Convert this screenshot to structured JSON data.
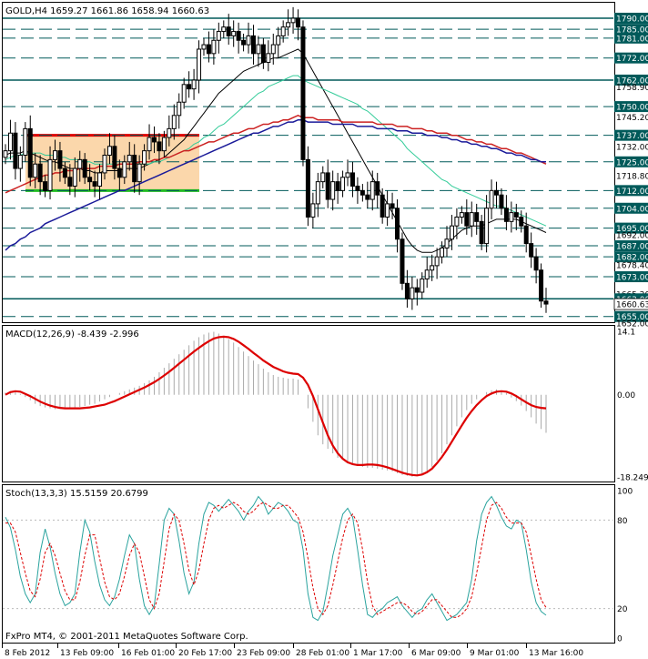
{
  "window": {
    "price_header": "GOLD,H4  1659.27 1661.86 1658.94 1660.63",
    "macd_header": "MACD(12,26,9) -8.439 -2.996",
    "stoch_header": "Stoch(13,3,3) 15.5159 20.6799",
    "copyright": "FxPro MT4, © 2001-2011 MetaQuotes Software Corp."
  },
  "colors": {
    "candle": "#000000",
    "sma_fast": "#000000",
    "sma_green": "#33cc99",
    "sma_red": "#cc2222",
    "sma_blue": "#1a1a99",
    "level_line": "#005a5a",
    "rect_fill": "#fbd7ab",
    "macd_signal": "#dd0000",
    "macd_hist": "#aaaaaa",
    "stoch_main": "#2aa39e",
    "stoch_signal": "#dd0000"
  },
  "chart_data": [
    {
      "type": "candlestick",
      "symbol": "GOLD",
      "timeframe": "H4",
      "ylim": [
        1652,
        1797
      ],
      "x_ticks": [
        "8 Feb 2012",
        "13 Feb 09:00",
        "16 Feb 01:00",
        "20 Feb 17:00",
        "23 Feb 09:00",
        "28 Feb 01:00",
        "1 Mar 17:00",
        "6 Mar 09:00",
        "9 Mar 01:00",
        "13 Mar 16:00"
      ],
      "level_labels": [
        "1790.00",
        "1785.00",
        "1781.00",
        "1772.00",
        "1762.00",
        "1758.90",
        "1750.00",
        "1745.20",
        "1737.00",
        "1732.00",
        "1725.00",
        "1718.80",
        "1712.00",
        "1704.00",
        "1695.00",
        "1692.00",
        "1687.00",
        "1682.00",
        "1678.40",
        "1673.00",
        "1665.20",
        "1663.00",
        "1660.63",
        "1655.00",
        "1652.00"
      ],
      "solid_levels": [
        1790,
        1762,
        1663
      ],
      "dashed_levels": [
        1785,
        1781,
        1772,
        1750,
        1737,
        1725,
        1712,
        1704,
        1695,
        1687,
        1682,
        1673,
        1655
      ],
      "current_price": 1660.63,
      "support_box": {
        "top": 1737,
        "bottom": 1712
      },
      "closes": [
        1730,
        1738,
        1722,
        1728,
        1740,
        1718,
        1724,
        1716,
        1712,
        1726,
        1730,
        1722,
        1718,
        1714,
        1722,
        1726,
        1718,
        1716,
        1714,
        1720,
        1728,
        1732,
        1722,
        1718,
        1725,
        1728,
        1716,
        1724,
        1730,
        1736,
        1734,
        1730,
        1736,
        1740,
        1746,
        1752,
        1760,
        1758,
        1762,
        1776,
        1778,
        1774,
        1780,
        1784,
        1786,
        1782,
        1784,
        1780,
        1778,
        1782,
        1774,
        1778,
        1770,
        1774,
        1778,
        1782,
        1786,
        1788,
        1790,
        1786,
        1726,
        1700,
        1706,
        1716,
        1720,
        1708,
        1716,
        1712,
        1718,
        1720,
        1714,
        1712,
        1710,
        1708,
        1716,
        1710,
        1700,
        1706,
        1704,
        1690,
        1670,
        1663,
        1668,
        1666,
        1672,
        1676,
        1678,
        1682,
        1686,
        1690,
        1696,
        1700,
        1702,
        1696,
        1702,
        1698,
        1688,
        1704,
        1712,
        1710,
        1704,
        1698,
        1702,
        1700,
        1696,
        1688,
        1682,
        1676,
        1662,
        1660.63
      ],
      "series": [
        {
          "name": "MA fast",
          "values": [
            1728,
            1729,
            1729,
            1729,
            1730,
            1729,
            1728,
            1727,
            1726,
            1725,
            1725,
            1724,
            1723,
            1722,
            1722,
            1722,
            1721,
            1721,
            1720,
            1720,
            1721,
            1721,
            1721,
            1721,
            1722,
            1722,
            1722,
            1722,
            1723,
            1724,
            1725,
            1726,
            1727,
            1729,
            1731,
            1733,
            1735,
            1738,
            1741,
            1744,
            1747,
            1750,
            1753,
            1756,
            1758,
            1760,
            1762,
            1764,
            1766,
            1767,
            1768,
            1769,
            1770,
            1771,
            1772,
            1772,
            1773,
            1774,
            1775,
            1776,
            1774,
            1770,
            1766,
            1762,
            1758,
            1754,
            1750,
            1746,
            1742,
            1738,
            1734,
            1730,
            1726,
            1722,
            1718,
            1714,
            1710,
            1706,
            1702,
            1698,
            1694,
            1690,
            1687,
            1685,
            1684,
            1684,
            1684,
            1685,
            1686,
            1688,
            1690,
            1692,
            1694,
            1695,
            1696,
            1696,
            1696,
            1697,
            1698,
            1699,
            1699,
            1699,
            1699,
            1699,
            1698,
            1697,
            1696,
            1695,
            1694,
            1693
          ]
        },
        {
          "name": "MA green",
          "values": [
            1726,
            1727,
            1728,
            1728,
            1729,
            1729,
            1729,
            1729,
            1728,
            1728,
            1728,
            1727,
            1727,
            1726,
            1726,
            1726,
            1725,
            1725,
            1724,
            1724,
            1724,
            1724,
            1724,
            1724,
            1724,
            1724,
            1724,
            1724,
            1724,
            1724,
            1725,
            1725,
            1726,
            1727,
            1728,
            1729,
            1730,
            1731,
            1733,
            1734,
            1736,
            1737,
            1739,
            1741,
            1742,
            1744,
            1746,
            1748,
            1750,
            1752,
            1754,
            1756,
            1757,
            1759,
            1760,
            1761,
            1762,
            1763,
            1764,
            1764,
            1762,
            1761,
            1760,
            1759,
            1758,
            1757,
            1756,
            1755,
            1754,
            1753,
            1752,
            1751,
            1749,
            1748,
            1746,
            1744,
            1742,
            1740,
            1738,
            1736,
            1734,
            1731,
            1729,
            1727,
            1725,
            1723,
            1721,
            1719,
            1717,
            1716,
            1714,
            1713,
            1712,
            1711,
            1710,
            1709,
            1708,
            1707,
            1706,
            1705,
            1705,
            1704,
            1703,
            1702,
            1701,
            1700,
            1699,
            1698,
            1697,
            1696
          ]
        },
        {
          "name": "MA red",
          "values": [
            1711,
            1712,
            1713,
            1714,
            1715,
            1716,
            1717,
            1718,
            1719,
            1719,
            1720,
            1720,
            1721,
            1721,
            1721,
            1722,
            1722,
            1722,
            1722,
            1723,
            1723,
            1723,
            1723,
            1724,
            1724,
            1724,
            1724,
            1725,
            1725,
            1725,
            1726,
            1726,
            1727,
            1727,
            1728,
            1729,
            1730,
            1730,
            1731,
            1732,
            1733,
            1734,
            1734,
            1735,
            1736,
            1737,
            1738,
            1738,
            1739,
            1740,
            1740,
            1741,
            1742,
            1742,
            1743,
            1743,
            1744,
            1744,
            1745,
            1746,
            1745,
            1745,
            1745,
            1744,
            1744,
            1744,
            1744,
            1744,
            1743,
            1743,
            1743,
            1743,
            1743,
            1743,
            1743,
            1742,
            1742,
            1742,
            1742,
            1741,
            1741,
            1741,
            1740,
            1740,
            1740,
            1739,
            1739,
            1738,
            1738,
            1738,
            1737,
            1737,
            1736,
            1735,
            1735,
            1734,
            1734,
            1733,
            1733,
            1732,
            1731,
            1731,
            1730,
            1729,
            1729,
            1728,
            1727,
            1726,
            1725,
            1724
          ]
        },
        {
          "name": "MA blue",
          "values": [
            1685,
            1687,
            1688,
            1690,
            1691,
            1693,
            1694,
            1695,
            1697,
            1698,
            1699,
            1700,
            1701,
            1702,
            1703,
            1704,
            1705,
            1706,
            1707,
            1708,
            1709,
            1710,
            1711,
            1712,
            1712,
            1713,
            1714,
            1715,
            1716,
            1717,
            1718,
            1719,
            1720,
            1721,
            1722,
            1723,
            1724,
            1725,
            1726,
            1727,
            1728,
            1729,
            1730,
            1731,
            1732,
            1733,
            1734,
            1735,
            1736,
            1737,
            1738,
            1738,
            1739,
            1740,
            1741,
            1741,
            1742,
            1743,
            1743,
            1744,
            1744,
            1743,
            1743,
            1743,
            1743,
            1743,
            1742,
            1742,
            1742,
            1742,
            1742,
            1741,
            1741,
            1741,
            1741,
            1740,
            1740,
            1740,
            1740,
            1739,
            1739,
            1739,
            1738,
            1738,
            1738,
            1737,
            1737,
            1737,
            1736,
            1736,
            1735,
            1735,
            1734,
            1734,
            1733,
            1733,
            1732,
            1732,
            1731,
            1731,
            1730,
            1729,
            1729,
            1728,
            1728,
            1727,
            1726,
            1726,
            1725,
            1725
          ]
        }
      ]
    },
    {
      "type": "bar+line",
      "indicator": "MACD(12,26,9)",
      "macd_value": -8.439,
      "signal_value": -2.996,
      "ylim": [
        -18.249,
        14.1
      ],
      "y_ticks": [
        "14.1",
        "0.00",
        "-18.249"
      ],
      "histogram": [
        0.5,
        0.8,
        0.6,
        0.2,
        -0.5,
        -1.2,
        -2.0,
        -2.5,
        -2.8,
        -3.0,
        -3.2,
        -3.1,
        -3.0,
        -2.9,
        -2.8,
        -2.7,
        -2.5,
        -2.2,
        -2.0,
        -1.5,
        -1.0,
        -0.5,
        0.0,
        0.4,
        0.8,
        1.2,
        1.6,
        2.0,
        2.6,
        3.2,
        4.0,
        5.0,
        6.0,
        7.0,
        8.0,
        9.0,
        10.0,
        11.0,
        12.0,
        12.8,
        13.4,
        13.8,
        14.0,
        13.6,
        13.0,
        12.4,
        11.6,
        10.6,
        9.6,
        8.6,
        7.6,
        6.8,
        5.8,
        5.0,
        4.4,
        4.0,
        3.8,
        3.6,
        3.6,
        3.4,
        0.0,
        -3.0,
        -6.0,
        -9.0,
        -11.0,
        -12.0,
        -13.0,
        -14.0,
        -14.4,
        -15.0,
        -15.4,
        -15.8,
        -16.0,
        -16.2,
        -16.2,
        -16.4,
        -16.6,
        -16.8,
        -17.0,
        -17.4,
        -17.8,
        -18.0,
        -18.2,
        -18.0,
        -17.6,
        -17.0,
        -16.0,
        -14.6,
        -13.0,
        -11.0,
        -9.0,
        -7.0,
        -5.0,
        -3.4,
        -2.0,
        -1.0,
        0.0,
        0.6,
        1.0,
        1.2,
        0.8,
        0.4,
        -0.6,
        -1.4,
        -2.4,
        -3.6,
        -5.0,
        -6.4,
        -7.6,
        -8.439
      ],
      "signal": [
        0.0,
        0.6,
        0.8,
        0.7,
        0.2,
        -0.3,
        -0.9,
        -1.5,
        -2.0,
        -2.4,
        -2.7,
        -2.9,
        -3.0,
        -3.0,
        -3.0,
        -3.0,
        -2.9,
        -2.8,
        -2.6,
        -2.4,
        -2.2,
        -1.8,
        -1.4,
        -0.9,
        -0.4,
        0.1,
        0.6,
        1.1,
        1.6,
        2.2,
        2.8,
        3.5,
        4.3,
        5.1,
        6.0,
        6.9,
        7.8,
        8.7,
        9.6,
        10.4,
        11.2,
        11.9,
        12.5,
        12.8,
        12.9,
        12.8,
        12.4,
        11.8,
        11.0,
        10.2,
        9.3,
        8.5,
        7.6,
        6.9,
        6.2,
        5.7,
        5.2,
        4.9,
        4.7,
        4.6,
        3.8,
        2.2,
        -0.3,
        -3.2,
        -6.2,
        -9.0,
        -11.3,
        -13.0,
        -14.2,
        -15.0,
        -15.4,
        -15.6,
        -15.6,
        -15.5,
        -15.5,
        -15.6,
        -15.8,
        -16.1,
        -16.5,
        -16.9,
        -17.3,
        -17.6,
        -17.8,
        -17.9,
        -17.7,
        -17.2,
        -16.4,
        -15.2,
        -13.8,
        -12.2,
        -10.4,
        -8.6,
        -6.8,
        -5.1,
        -3.6,
        -2.3,
        -1.2,
        -0.3,
        0.3,
        0.7,
        0.8,
        0.7,
        0.3,
        -0.3,
        -1.0,
        -1.7,
        -2.3,
        -2.7,
        -2.9,
        -2.996
      ]
    },
    {
      "type": "line",
      "indicator": "Stoch(13,3,3)",
      "main_value": 15.5159,
      "signal_value": 20.6799,
      "ylim": [
        0,
        100
      ],
      "y_ticks": [
        "100",
        "80",
        "20",
        "0"
      ],
      "series": [
        {
          "name": "main",
          "values": [
            82,
            75,
            60,
            42,
            30,
            24,
            30,
            58,
            74,
            62,
            44,
            30,
            22,
            24,
            30,
            58,
            80,
            72,
            52,
            36,
            26,
            22,
            28,
            40,
            56,
            70,
            64,
            40,
            22,
            16,
            22,
            50,
            80,
            88,
            84,
            66,
            44,
            30,
            38,
            64,
            84,
            92,
            90,
            86,
            90,
            94,
            90,
            86,
            80,
            86,
            90,
            96,
            92,
            84,
            88,
            92,
            90,
            86,
            80,
            78,
            60,
            30,
            14,
            12,
            18,
            36,
            56,
            70,
            84,
            88,
            82,
            60,
            36,
            16,
            14,
            18,
            20,
            24,
            26,
            28,
            22,
            18,
            14,
            18,
            20,
            26,
            30,
            24,
            18,
            12,
            14,
            16,
            20,
            24,
            40,
            66,
            84,
            92,
            96,
            90,
            82,
            76,
            74,
            80,
            78,
            60,
            38,
            24,
            18,
            15.5159
          ]
        },
        {
          "name": "signal",
          "values": [
            78,
            78,
            72,
            58,
            44,
            32,
            28,
            40,
            58,
            64,
            56,
            44,
            32,
            26,
            26,
            38,
            56,
            70,
            70,
            54,
            38,
            28,
            26,
            30,
            42,
            56,
            64,
            58,
            42,
            26,
            20,
            30,
            52,
            74,
            84,
            80,
            64,
            46,
            36,
            46,
            64,
            80,
            88,
            90,
            88,
            90,
            92,
            90,
            86,
            84,
            86,
            90,
            92,
            90,
            88,
            88,
            90,
            90,
            86,
            82,
            72,
            54,
            34,
            20,
            16,
            22,
            36,
            52,
            68,
            80,
            84,
            78,
            60,
            38,
            22,
            16,
            18,
            20,
            22,
            24,
            24,
            22,
            18,
            16,
            18,
            22,
            26,
            26,
            22,
            18,
            14,
            14,
            16,
            20,
            28,
            44,
            62,
            80,
            90,
            92,
            88,
            82,
            78,
            78,
            78,
            72,
            56,
            40,
            26,
            20.6799
          ]
        }
      ]
    }
  ]
}
